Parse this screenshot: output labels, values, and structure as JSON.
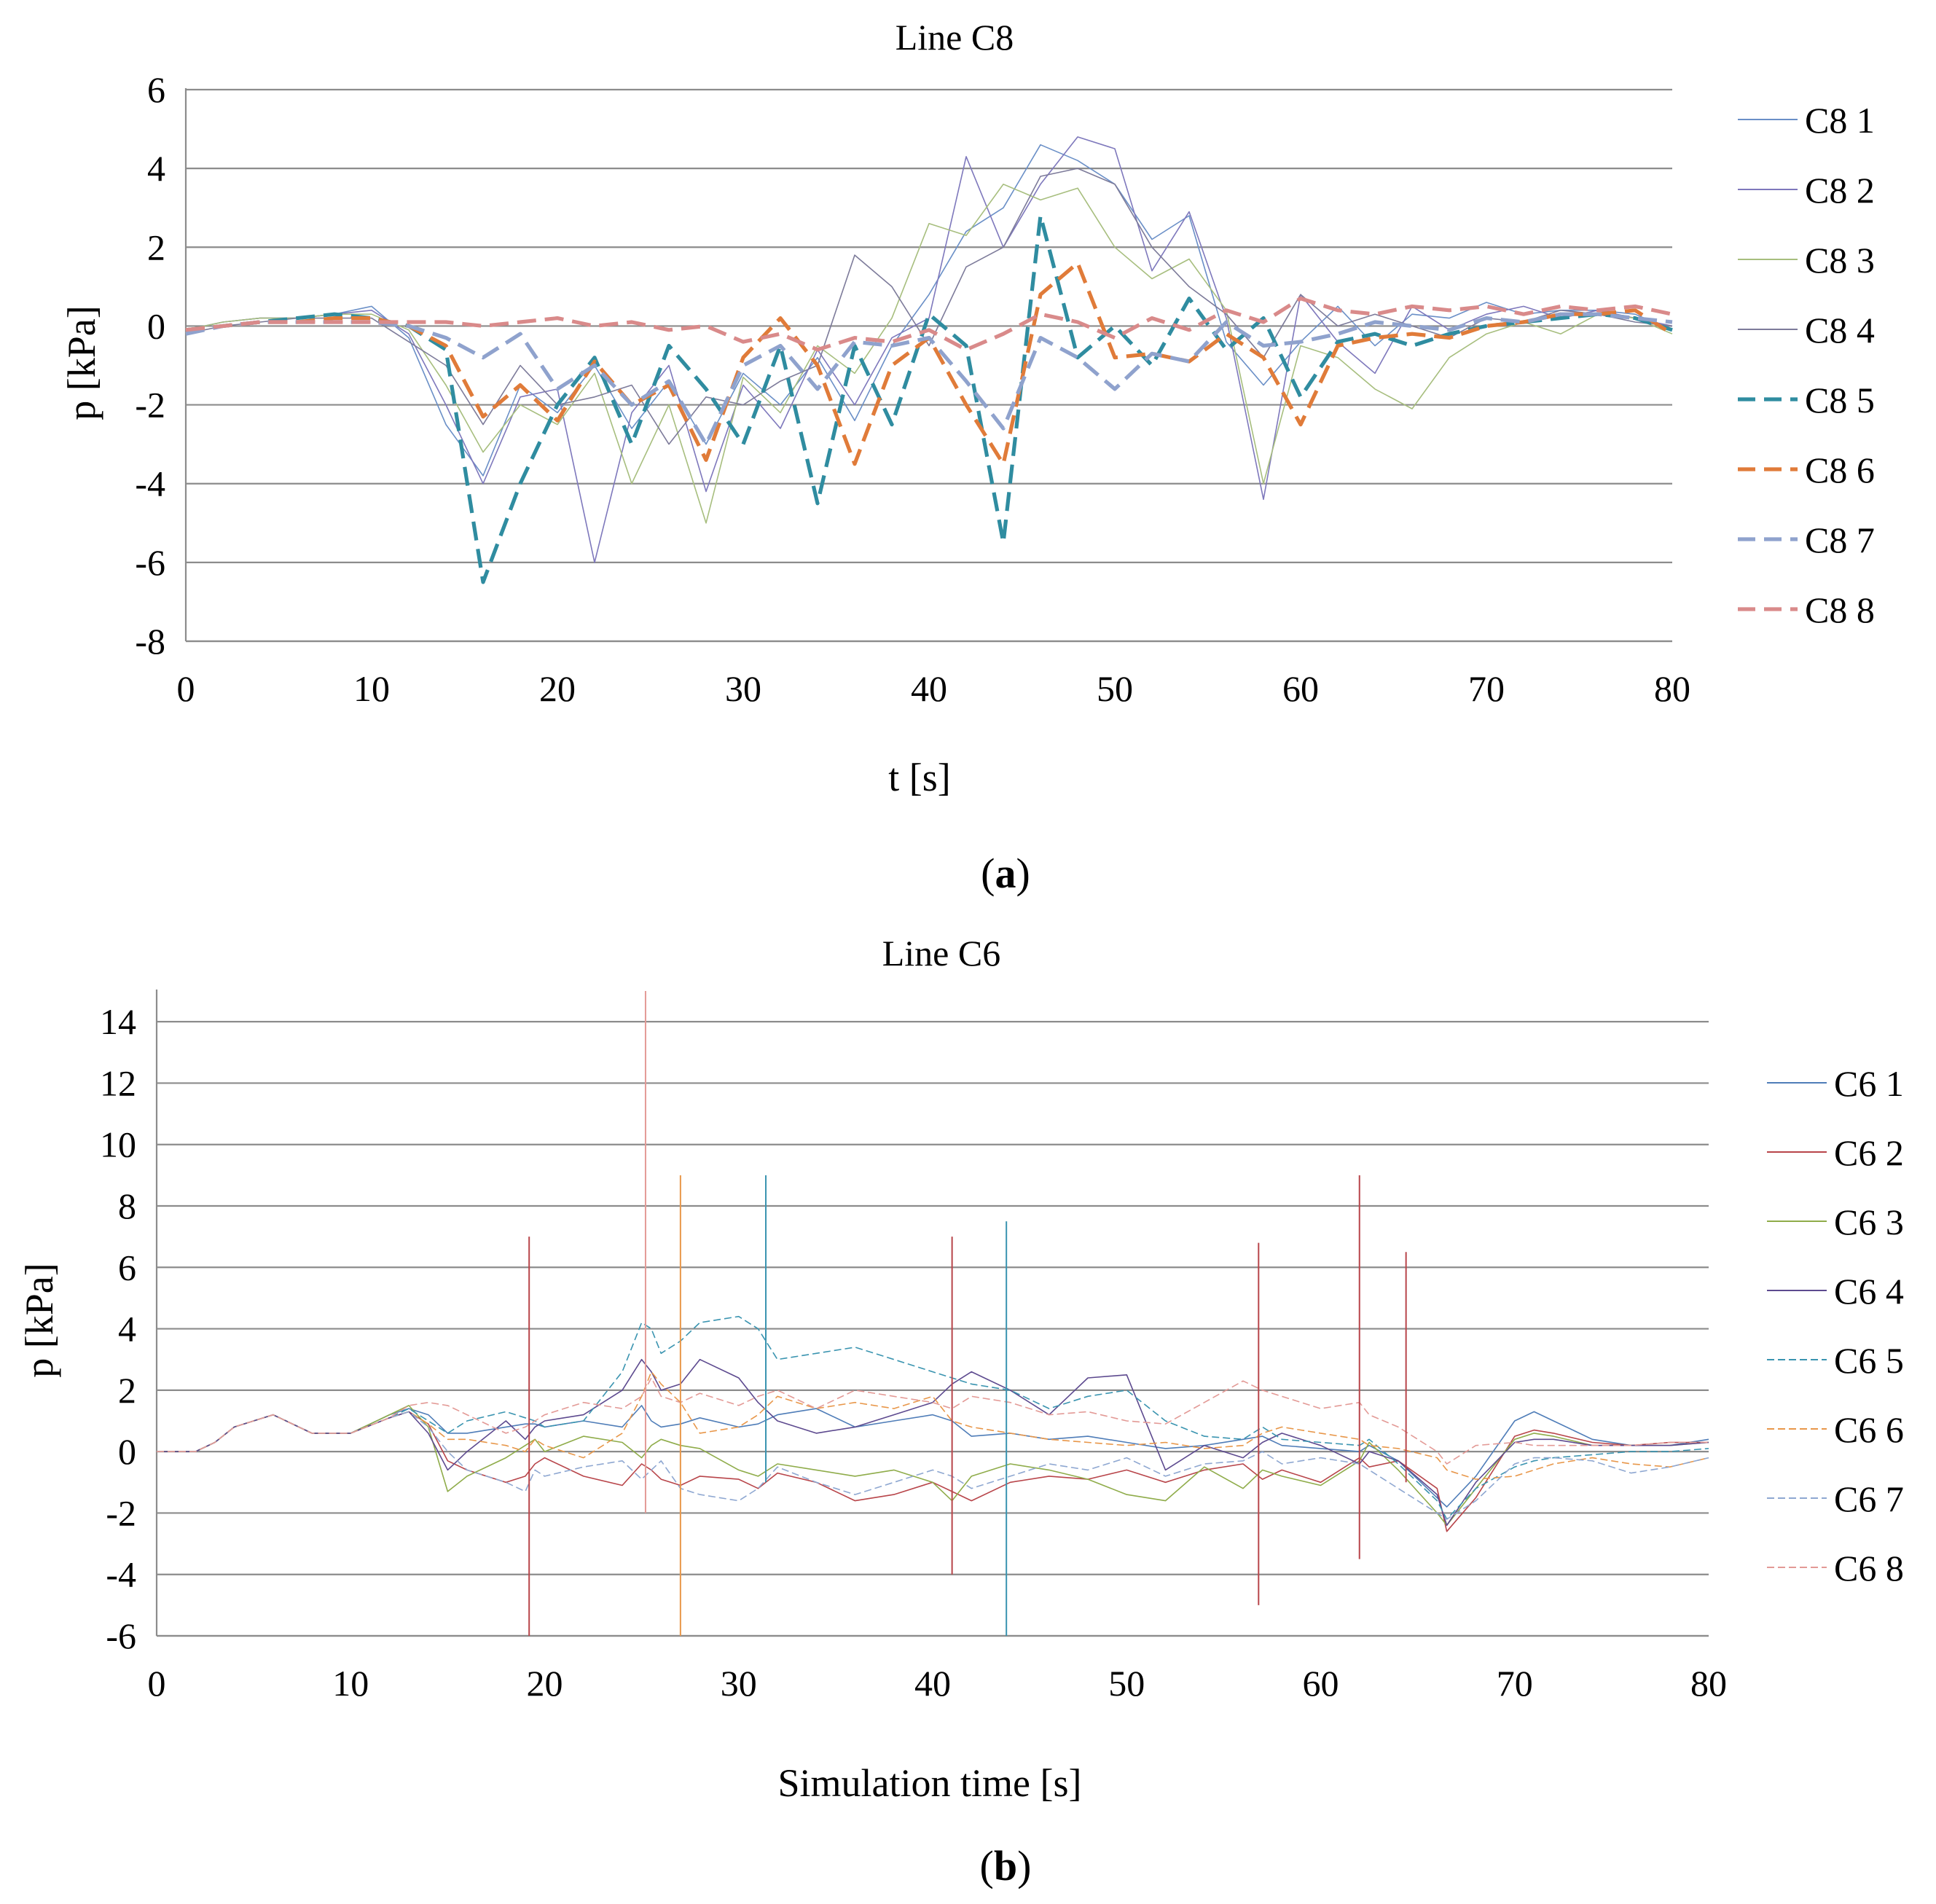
{
  "chart_data": [
    {
      "type": "line",
      "panel_caption": "a",
      "title": "Line C8",
      "xlabel": "t [s]",
      "ylabel": "p [kPa]",
      "xlim": [
        0,
        80
      ],
      "ylim": [
        -8,
        6
      ],
      "xticks": [
        0,
        10,
        20,
        30,
        40,
        50,
        60,
        70,
        80
      ],
      "yticks": [
        -8,
        -6,
        -4,
        -2,
        0,
        2,
        4,
        6
      ],
      "grid": "horizontal",
      "legend_position": "right",
      "x": [
        0,
        2,
        4,
        6,
        8,
        10,
        12,
        14,
        16,
        18,
        20,
        22,
        24,
        26,
        28,
        30,
        32,
        34,
        36,
        38,
        40,
        42,
        44,
        46,
        48,
        50,
        52,
        54,
        56,
        58,
        60,
        62,
        64,
        66,
        68,
        70,
        72,
        74,
        76,
        78,
        80
      ],
      "series": [
        {
          "name": "C8 1",
          "color": "#6a8fc7",
          "style": "solid",
          "width": "thin",
          "values": [
            -0.1,
            0.1,
            0.2,
            0.2,
            0.3,
            0.5,
            -0.3,
            -2.5,
            -3.8,
            -1.5,
            -2.2,
            -1.0,
            -2.6,
            -1.4,
            -3.0,
            -1.2,
            -2.0,
            -0.8,
            -2.4,
            -0.5,
            0.8,
            2.4,
            3.0,
            4.6,
            4.2,
            3.6,
            2.2,
            2.8,
            -0.4,
            -1.5,
            -0.4,
            0.5,
            -0.5,
            0.3,
            0.2,
            0.6,
            0.3,
            0.4,
            0.4,
            0.3,
            -0.1
          ]
        },
        {
          "name": "C8 2",
          "color": "#7e78bc",
          "style": "solid",
          "width": "thin",
          "values": [
            -0.1,
            0.1,
            0.2,
            0.2,
            0.3,
            0.4,
            -0.2,
            -2.0,
            -4.0,
            -1.8,
            -1.6,
            -6.0,
            -2.2,
            -1.0,
            -4.2,
            -1.5,
            -2.6,
            -0.6,
            -2.0,
            -0.3,
            0.2,
            4.3,
            2.0,
            3.6,
            4.8,
            4.5,
            1.4,
            2.9,
            0.2,
            -4.4,
            0.8,
            -0.4,
            -1.2,
            0.5,
            -0.1,
            0.3,
            0.5,
            0.2,
            0.4,
            0.2,
            0.0
          ]
        },
        {
          "name": "C8 3",
          "color": "#a7be7e",
          "style": "solid",
          "width": "thin",
          "values": [
            -0.1,
            0.1,
            0.2,
            0.2,
            0.3,
            0.3,
            -0.1,
            -1.5,
            -3.2,
            -2.0,
            -2.5,
            -1.2,
            -4.0,
            -2.0,
            -5.0,
            -1.3,
            -2.2,
            -0.5,
            -1.2,
            0.2,
            2.6,
            2.3,
            3.6,
            3.2,
            3.5,
            2.0,
            1.2,
            1.7,
            0.4,
            -4.0,
            -0.5,
            -0.8,
            -1.6,
            -2.1,
            -0.8,
            -0.2,
            0.1,
            -0.2,
            0.3,
            0.2,
            -0.2
          ]
        },
        {
          "name": "C8 4",
          "color": "#7d7b9a",
          "style": "solid",
          "width": "thin",
          "values": [
            -0.2,
            0.0,
            0.1,
            0.2,
            0.2,
            0.2,
            -0.4,
            -1.0,
            -2.5,
            -1.0,
            -2.0,
            -1.8,
            -1.5,
            -3.0,
            -1.8,
            -2.0,
            -1.4,
            -1.0,
            1.8,
            1.0,
            -0.5,
            1.5,
            2.0,
            3.8,
            4.0,
            3.6,
            2.0,
            1.0,
            0.3,
            -0.8,
            0.8,
            0.0,
            0.3,
            0.0,
            -0.3,
            0.2,
            0.1,
            0.4,
            0.3,
            0.1,
            0.0
          ]
        },
        {
          "name": "C8 5",
          "color": "#2f8ca0",
          "style": "dashed",
          "width": "thick",
          "values": [
            -0.1,
            0.0,
            0.1,
            0.2,
            0.3,
            0.2,
            0.0,
            -0.6,
            -6.5,
            -4.0,
            -2.0,
            -0.8,
            -3.0,
            -0.5,
            -1.6,
            -3.0,
            -0.5,
            -4.5,
            -0.5,
            -2.5,
            0.3,
            -0.5,
            -5.5,
            2.8,
            -0.8,
            0.0,
            -1.0,
            0.7,
            -0.6,
            0.2,
            -1.8,
            -0.4,
            -0.2,
            -0.5,
            -0.2,
            0.0,
            0.1,
            0.2,
            0.3,
            0.2,
            -0.1
          ]
        },
        {
          "name": "C8 6",
          "color": "#e07b39",
          "style": "dashed",
          "width": "thick",
          "values": [
            -0.1,
            0.0,
            0.1,
            0.1,
            0.2,
            0.2,
            0.0,
            -0.5,
            -2.3,
            -1.5,
            -2.4,
            -0.9,
            -2.0,
            -1.5,
            -3.4,
            -0.8,
            0.2,
            -1.0,
            -3.5,
            -1.0,
            -0.3,
            -2.0,
            -3.5,
            0.8,
            1.6,
            -0.8,
            -0.7,
            -0.9,
            -0.2,
            -0.8,
            -2.5,
            -0.5,
            -0.3,
            -0.2,
            -0.3,
            0.0,
            0.1,
            0.3,
            0.3,
            0.4,
            -0.2
          ]
        },
        {
          "name": "C8 7",
          "color": "#8fa2cd",
          "style": "dashed",
          "width": "thick",
          "values": [
            -0.2,
            0.0,
            0.1,
            0.1,
            0.1,
            0.1,
            0.0,
            -0.3,
            -0.8,
            -0.2,
            -1.6,
            -1.0,
            -2.0,
            -1.4,
            -3.0,
            -1.0,
            -0.5,
            -1.6,
            -0.4,
            -0.5,
            -0.3,
            -1.4,
            -2.6,
            -0.3,
            -0.8,
            -1.6,
            -0.7,
            -0.9,
            0.1,
            -0.5,
            -0.4,
            -0.2,
            0.1,
            0.0,
            -0.1,
            0.2,
            0.1,
            0.3,
            0.3,
            0.2,
            0.1
          ]
        },
        {
          "name": "C8 8",
          "color": "#d98a8a",
          "style": "dashed",
          "width": "thick",
          "values": [
            -0.1,
            0.0,
            0.1,
            0.1,
            0.1,
            0.1,
            0.1,
            0.1,
            0.0,
            0.1,
            0.2,
            0.0,
            0.1,
            -0.1,
            0.0,
            -0.4,
            -0.2,
            -0.6,
            -0.3,
            -0.4,
            -0.1,
            -0.6,
            -0.2,
            0.3,
            0.1,
            -0.3,
            0.2,
            -0.1,
            0.4,
            0.1,
            0.7,
            0.4,
            0.3,
            0.5,
            0.4,
            0.5,
            0.3,
            0.5,
            0.4,
            0.5,
            0.3
          ]
        }
      ]
    },
    {
      "type": "line",
      "panel_caption": "b",
      "title": "Line C6",
      "xlabel": "Simulation time [s]",
      "ylabel": "p [kPa]",
      "xlim": [
        0,
        80
      ],
      "ylim": [
        -6,
        15
      ],
      "xticks": [
        0,
        10,
        20,
        30,
        40,
        50,
        60,
        70,
        80
      ],
      "yticks": [
        -6,
        -4,
        -2,
        0,
        2,
        4,
        6,
        8,
        10,
        12,
        14
      ],
      "grid": "horizontal",
      "legend_position": "right",
      "x": [
        0,
        2,
        3,
        4,
        5,
        6,
        8,
        10,
        12,
        13,
        14,
        15,
        16,
        18,
        19,
        19.5,
        20,
        22,
        24,
        25,
        25.5,
        26,
        27,
        28,
        30,
        31,
        32,
        34,
        36,
        38,
        40,
        41,
        42,
        44,
        46,
        48,
        50,
        52,
        54,
        56,
        57,
        58,
        60,
        62,
        62.5,
        64,
        66,
        66.5,
        68,
        70,
        71,
        72,
        74,
        76,
        78,
        80
      ],
      "series": [
        {
          "name": "C6 1",
          "color": "#4f7db8",
          "style": "solid",
          "width": "thin",
          "values": [
            0.0,
            0.0,
            0.3,
            0.8,
            1.0,
            1.2,
            0.6,
            0.6,
            1.2,
            1.4,
            1.2,
            0.6,
            0.6,
            0.8,
            0.9,
            0.9,
            0.8,
            1.0,
            0.8,
            1.5,
            1.0,
            0.8,
            0.9,
            1.1,
            0.8,
            0.9,
            1.2,
            1.4,
            0.8,
            1.0,
            1.2,
            1.0,
            0.5,
            0.6,
            0.4,
            0.5,
            0.3,
            0.1,
            0.2,
            0.4,
            0.5,
            0.2,
            0.1,
            0.0,
            0.2,
            -0.3,
            -1.5,
            -1.8,
            -0.8,
            1.0,
            1.3,
            1.0,
            0.4,
            0.2,
            0.2,
            0.4
          ]
        },
        {
          "name": "C6 2",
          "color": "#b8454a",
          "style": "solid",
          "width": "thin",
          "values": [
            0.0,
            0.0,
            0.3,
            0.8,
            1.0,
            1.2,
            0.6,
            0.6,
            1.1,
            1.3,
            0.9,
            -0.3,
            -0.6,
            -1.0,
            -0.8,
            -0.4,
            -0.2,
            -0.8,
            -1.1,
            -0.4,
            -0.6,
            -0.9,
            -1.1,
            -0.8,
            -0.9,
            -1.2,
            -0.7,
            -1.0,
            -1.6,
            -1.4,
            -1.0,
            -1.3,
            -1.6,
            -1.0,
            -0.8,
            -0.9,
            -0.6,
            -1.0,
            -0.6,
            -0.4,
            -0.9,
            -0.6,
            -1.0,
            -0.2,
            -0.5,
            -0.3,
            -1.2,
            -2.6,
            -1.5,
            0.5,
            0.7,
            0.6,
            0.3,
            0.2,
            0.3,
            0.3
          ]
        },
        {
          "name": "C6 3",
          "color": "#8fac4a",
          "style": "solid",
          "width": "thin",
          "values": [
            0.0,
            0.0,
            0.3,
            0.8,
            1.0,
            1.2,
            0.6,
            0.6,
            1.2,
            1.5,
            0.8,
            -1.3,
            -0.8,
            -0.2,
            0.2,
            0.4,
            0.0,
            0.5,
            0.3,
            -0.2,
            0.2,
            0.4,
            0.2,
            0.1,
            -0.6,
            -0.8,
            -0.4,
            -0.6,
            -0.8,
            -0.6,
            -1.0,
            -1.6,
            -0.8,
            -0.4,
            -0.6,
            -0.9,
            -1.4,
            -1.6,
            -0.5,
            -1.2,
            -0.6,
            -0.8,
            -1.1,
            -0.3,
            0.3,
            -0.6,
            -2.0,
            -2.4,
            -1.2,
            0.4,
            0.6,
            0.5,
            0.2,
            0.2,
            0.2,
            0.3
          ]
        },
        {
          "name": "C6 4",
          "color": "#5d4a8f",
          "style": "solid",
          "width": "thin",
          "values": [
            0.0,
            0.0,
            0.3,
            0.8,
            1.0,
            1.2,
            0.6,
            0.6,
            1.1,
            1.3,
            0.6,
            -0.6,
            0.0,
            1.0,
            0.4,
            0.8,
            1.0,
            1.2,
            2.0,
            3.0,
            2.6,
            2.0,
            2.2,
            3.0,
            2.4,
            1.6,
            1.0,
            0.6,
            0.8,
            1.2,
            1.6,
            2.2,
            2.6,
            2.0,
            1.2,
            2.4,
            2.5,
            -0.6,
            0.2,
            -0.2,
            0.3,
            0.6,
            0.2,
            -0.4,
            0.0,
            -0.3,
            -1.4,
            -2.4,
            -1.0,
            0.3,
            0.4,
            0.4,
            0.2,
            0.2,
            0.2,
            0.3
          ]
        },
        {
          "name": "C6 5",
          "color": "#3a94b0",
          "style": "dashed",
          "width": "thin",
          "values": [
            0.0,
            0.0,
            0.3,
            0.8,
            1.0,
            1.2,
            0.6,
            0.6,
            1.1,
            1.4,
            1.0,
            0.6,
            1.0,
            1.3,
            1.1,
            1.0,
            0.8,
            1.0,
            2.6,
            4.2,
            4.0,
            3.2,
            3.6,
            4.2,
            4.4,
            4.0,
            3.0,
            3.2,
            3.4,
            3.0,
            2.6,
            2.4,
            2.2,
            2.0,
            1.4,
            1.8,
            2.0,
            1.0,
            0.5,
            0.4,
            0.8,
            0.4,
            0.3,
            0.2,
            0.4,
            -0.4,
            -1.6,
            -2.2,
            -1.2,
            -0.5,
            -0.3,
            -0.2,
            -0.1,
            0.0,
            0.0,
            0.1
          ]
        },
        {
          "name": "C6 6",
          "color": "#e8974a",
          "style": "dashed",
          "width": "thin",
          "values": [
            0.0,
            0.0,
            0.3,
            0.8,
            1.0,
            1.2,
            0.6,
            0.6,
            1.1,
            1.3,
            0.9,
            0.4,
            0.4,
            0.2,
            0.0,
            0.4,
            0.2,
            -0.2,
            0.6,
            1.8,
            2.6,
            2.2,
            1.6,
            0.6,
            0.8,
            1.2,
            1.8,
            1.4,
            1.6,
            1.4,
            1.8,
            1.0,
            0.8,
            0.6,
            0.4,
            0.3,
            0.2,
            0.3,
            0.1,
            0.2,
            0.6,
            0.8,
            0.6,
            0.4,
            0.2,
            0.1,
            -0.2,
            -0.6,
            -0.9,
            -0.8,
            -0.6,
            -0.4,
            -0.2,
            -0.4,
            -0.5,
            -0.2
          ]
        },
        {
          "name": "C6 7",
          "color": "#8ea7d1",
          "style": "dashed",
          "width": "thin",
          "values": [
            0.0,
            0.0,
            0.3,
            0.8,
            1.0,
            1.2,
            0.6,
            0.6,
            1.1,
            1.3,
            0.8,
            0.0,
            -0.6,
            -1.0,
            -1.3,
            -0.6,
            -0.8,
            -0.5,
            -0.3,
            -0.9,
            -0.6,
            -0.3,
            -1.2,
            -1.4,
            -1.6,
            -1.2,
            -0.5,
            -1.0,
            -1.4,
            -1.0,
            -0.6,
            -0.8,
            -1.2,
            -0.8,
            -0.4,
            -0.6,
            -0.2,
            -0.8,
            -0.4,
            -0.3,
            0.0,
            -0.4,
            -0.2,
            -0.4,
            -0.6,
            -1.2,
            -2.0,
            -2.2,
            -1.6,
            -0.4,
            -0.2,
            -0.2,
            -0.3,
            -0.7,
            -0.5,
            -0.2
          ]
        },
        {
          "name": "C6 8",
          "color": "#e39a96",
          "style": "dashed",
          "width": "thin",
          "values": [
            0.0,
            0.0,
            0.3,
            0.8,
            1.0,
            1.2,
            0.6,
            0.6,
            1.1,
            1.5,
            1.6,
            1.5,
            1.2,
            0.6,
            0.8,
            1.0,
            1.2,
            1.6,
            1.4,
            1.8,
            2.4,
            1.8,
            1.6,
            1.9,
            1.5,
            1.8,
            2.0,
            1.4,
            2.0,
            1.8,
            1.6,
            1.4,
            1.8,
            1.6,
            1.2,
            1.3,
            1.0,
            0.9,
            1.6,
            2.3,
            2.0,
            1.8,
            1.4,
            1.6,
            1.2,
            0.8,
            0.0,
            -0.4,
            0.2,
            0.3,
            0.2,
            0.2,
            0.2,
            0.2,
            0.3,
            0.3
          ]
        }
      ],
      "spikes": [
        {
          "x": 19.2,
          "min": -6,
          "max": 7,
          "color": "#b8454a"
        },
        {
          "x": 25.2,
          "min": -2,
          "max": 15,
          "color": "#e39a96"
        },
        {
          "x": 27.0,
          "min": -6,
          "max": 9,
          "color": "#e8974a"
        },
        {
          "x": 31.4,
          "min": -1,
          "max": 9,
          "color": "#3a94b0"
        },
        {
          "x": 41.0,
          "min": -4,
          "max": 7,
          "color": "#b8454a"
        },
        {
          "x": 43.8,
          "min": -6,
          "max": 7.5,
          "color": "#3a94b0"
        },
        {
          "x": 56.8,
          "min": -5,
          "max": 6.8,
          "color": "#b8454a"
        },
        {
          "x": 62.0,
          "min": -3.5,
          "max": 9,
          "color": "#b8454a"
        },
        {
          "x": 64.4,
          "min": -1,
          "max": 6.5,
          "color": "#b8454a"
        }
      ]
    }
  ],
  "captions": {
    "a": "a",
    "b": "b",
    "open": "(",
    "close": ")"
  }
}
